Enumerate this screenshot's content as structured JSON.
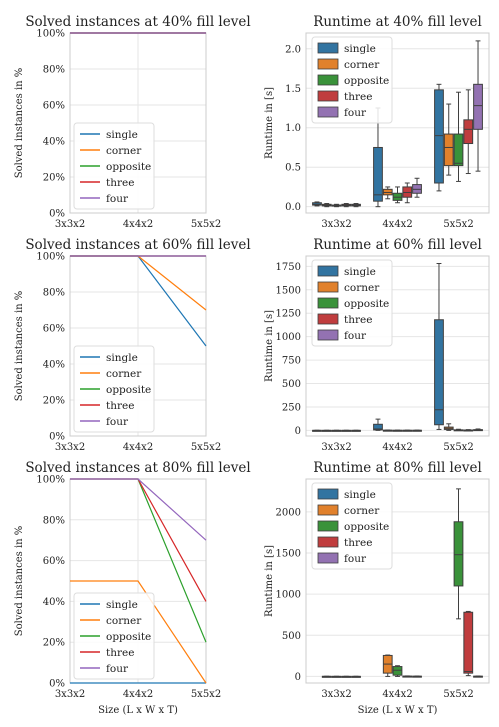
{
  "colors": {
    "single": "#1f77b4",
    "corner": "#ff7f0e",
    "opposite": "#2ca02c",
    "three": "#d62728",
    "four": "#9467bd",
    "box_single": "#3274a1",
    "box_corner": "#e1812c",
    "box_opposite": "#3a923a",
    "box_three": "#c03d3e",
    "box_four": "#9372b2",
    "grid": "#e6e6e6",
    "spine": "#cccccc"
  },
  "chart_data": [
    {
      "type": "line",
      "title": "Solved instances at 40% fill level",
      "xlabel": "",
      "ylabel": "Solved instances in %",
      "x": [
        "3x3x2",
        "4x4x2",
        "5x5x2"
      ],
      "yticks": [
        "0%",
        "20%",
        "40%",
        "60%",
        "80%",
        "100%"
      ],
      "ylim": [
        0,
        100
      ],
      "legend_position": "lower-left",
      "series": [
        {
          "name": "single",
          "values": [
            100,
            100,
            100
          ]
        },
        {
          "name": "corner",
          "values": [
            100,
            100,
            100
          ]
        },
        {
          "name": "opposite",
          "values": [
            100,
            100,
            100
          ]
        },
        {
          "name": "three",
          "values": [
            100,
            100,
            100
          ]
        },
        {
          "name": "four",
          "values": [
            100,
            100,
            100
          ]
        }
      ]
    },
    {
      "type": "box",
      "title": "Runtime at 40% fill level",
      "xlabel": "",
      "ylabel": "Runtime in [s]",
      "categories": [
        "3x3x2",
        "4x4x2",
        "5x5x2"
      ],
      "yticks": [
        "0.0",
        "0.5",
        "1.0",
        "1.5",
        "2.0"
      ],
      "ylim": [
        -0.08,
        2.2
      ],
      "legend_position": "top-left",
      "series": [
        {
          "name": "single",
          "boxes": [
            [
              0.01,
              0.02,
              0.03,
              0.05,
              0.06
            ],
            [
              0.0,
              0.07,
              0.15,
              0.75,
              1.25
            ],
            [
              0.2,
              0.3,
              0.9,
              1.48,
              1.55
            ]
          ]
        },
        {
          "name": "corner",
          "boxes": [
            [
              0.0,
              0.01,
              0.02,
              0.03,
              0.04
            ],
            [
              0.1,
              0.15,
              0.18,
              0.22,
              0.25
            ],
            [
              0.4,
              0.52,
              0.75,
              0.92,
              1.3
            ]
          ]
        },
        {
          "name": "opposite",
          "boxes": [
            [
              0.0,
              0.01,
              0.02,
              0.02,
              0.03
            ],
            [
              0.05,
              0.08,
              0.12,
              0.17,
              0.25
            ],
            [
              0.32,
              0.52,
              0.55,
              0.92,
              1.45
            ]
          ]
        },
        {
          "name": "three",
          "boxes": [
            [
              0.0,
              0.01,
              0.02,
              0.03,
              0.04
            ],
            [
              0.05,
              0.12,
              0.18,
              0.25,
              0.3
            ],
            [
              0.42,
              0.8,
              0.98,
              1.1,
              1.48
            ]
          ]
        },
        {
          "name": "four",
          "boxes": [
            [
              0.0,
              0.01,
              0.02,
              0.03,
              0.04
            ],
            [
              0.12,
              0.17,
              0.22,
              0.28,
              0.36
            ],
            [
              0.45,
              0.98,
              1.28,
              1.55,
              2.1
            ]
          ]
        }
      ]
    },
    {
      "type": "line",
      "title": "Solved instances at 60% fill level",
      "xlabel": "",
      "ylabel": "Solved instances in %",
      "x": [
        "3x3x2",
        "4x4x2",
        "5x5x2"
      ],
      "yticks": [
        "0%",
        "20%",
        "40%",
        "60%",
        "80%",
        "100%"
      ],
      "ylim": [
        0,
        100
      ],
      "legend_position": "lower-left",
      "series": [
        {
          "name": "single",
          "values": [
            100,
            100,
            50
          ]
        },
        {
          "name": "corner",
          "values": [
            100,
            100,
            70
          ]
        },
        {
          "name": "opposite",
          "values": [
            100,
            100,
            100
          ]
        },
        {
          "name": "three",
          "values": [
            100,
            100,
            100
          ]
        },
        {
          "name": "four",
          "values": [
            100,
            100,
            100
          ]
        }
      ]
    },
    {
      "type": "box",
      "title": "Runtime at 60% fill level",
      "xlabel": "",
      "ylabel": "Runtime in [s]",
      "categories": [
        "3x3x2",
        "4x4x2",
        "5x5x2"
      ],
      "yticks": [
        "0",
        "250",
        "500",
        "750",
        "1000",
        "1250",
        "1500",
        "1750"
      ],
      "ylim": [
        -60,
        1860
      ],
      "legend_position": "top-left",
      "series": [
        {
          "name": "single",
          "boxes": [
            [
              0,
              0,
              0,
              0.2,
              0.4
            ],
            [
              0,
              5,
              15,
              65,
              120
            ],
            [
              10,
              60,
              220,
              1180,
              1780
            ]
          ]
        },
        {
          "name": "corner",
          "boxes": [
            [
              0,
              0,
              0,
              0,
              0.2
            ],
            [
              0,
              0,
              1,
              2,
              4
            ],
            [
              0,
              10,
              22,
              35,
              70
            ]
          ]
        },
        {
          "name": "opposite",
          "boxes": [
            [
              0,
              0,
              0,
              0,
              0.2
            ],
            [
              0,
              0,
              0.5,
              1,
              2
            ],
            [
              0,
              1,
              2,
              6,
              12
            ]
          ]
        },
        {
          "name": "three",
          "boxes": [
            [
              0,
              0,
              0,
              0,
              0.2
            ],
            [
              0,
              0,
              0.5,
              1,
              2
            ],
            [
              0,
              1,
              2,
              4,
              8
            ]
          ]
        },
        {
          "name": "four",
          "boxes": [
            [
              0,
              0,
              0,
              0,
              0.2
            ],
            [
              0,
              0,
              0.5,
              1,
              2
            ],
            [
              0,
              2,
              4,
              8,
              15
            ]
          ]
        }
      ]
    },
    {
      "type": "line",
      "title": "Solved instances at 80% fill level",
      "xlabel": "Size (L x W x T)",
      "ylabel": "Solved instances in %",
      "x": [
        "3x3x2",
        "4x4x2",
        "5x5x2"
      ],
      "yticks": [
        "0%",
        "20%",
        "40%",
        "60%",
        "80%",
        "100%"
      ],
      "ylim": [
        0,
        100
      ],
      "legend_position": "lower-left",
      "series": [
        {
          "name": "single",
          "values": [
            0,
            0,
            0
          ]
        },
        {
          "name": "corner",
          "values": [
            50,
            50,
            0
          ]
        },
        {
          "name": "opposite",
          "values": [
            100,
            100,
            20
          ]
        },
        {
          "name": "three",
          "values": [
            100,
            100,
            40
          ]
        },
        {
          "name": "four",
          "values": [
            100,
            100,
            70
          ]
        }
      ]
    },
    {
      "type": "box",
      "title": "Runtime at 80% fill level",
      "xlabel": "Size (L x W x T)",
      "ylabel": "Runtime in [s]",
      "categories": [
        "3x3x2",
        "4x4x2",
        "5x5x2"
      ],
      "yticks": [
        "0",
        "500",
        "1000",
        "1500",
        "2000"
      ],
      "ylim": [
        -80,
        2400
      ],
      "legend_position": "top-left",
      "series": [
        {
          "name": "single",
          "boxes": [
            null,
            null,
            null
          ]
        },
        {
          "name": "corner",
          "boxes": [
            [
              0,
              0,
              0.5,
              1,
              1.5
            ],
            [
              0,
              40,
              150,
              255,
              260
            ],
            null
          ]
        },
        {
          "name": "opposite",
          "boxes": [
            [
              0,
              0,
              0.3,
              0.6,
              1
            ],
            [
              0,
              15,
              75,
              120,
              130
            ],
            [
              700,
              1100,
              1480,
              1880,
              2280
            ]
          ]
        },
        {
          "name": "three",
          "boxes": [
            [
              0,
              0,
              0.2,
              0.5,
              1
            ],
            [
              0,
              0,
              2,
              4,
              6
            ],
            [
              10,
              40,
              60,
              780,
              790
            ]
          ]
        },
        {
          "name": "four",
          "boxes": [
            [
              0,
              0,
              0.2,
              0.5,
              1
            ],
            [
              0,
              0,
              1,
              3,
              5
            ],
            [
              0,
              0,
              1,
              3,
              5
            ]
          ]
        }
      ]
    }
  ]
}
